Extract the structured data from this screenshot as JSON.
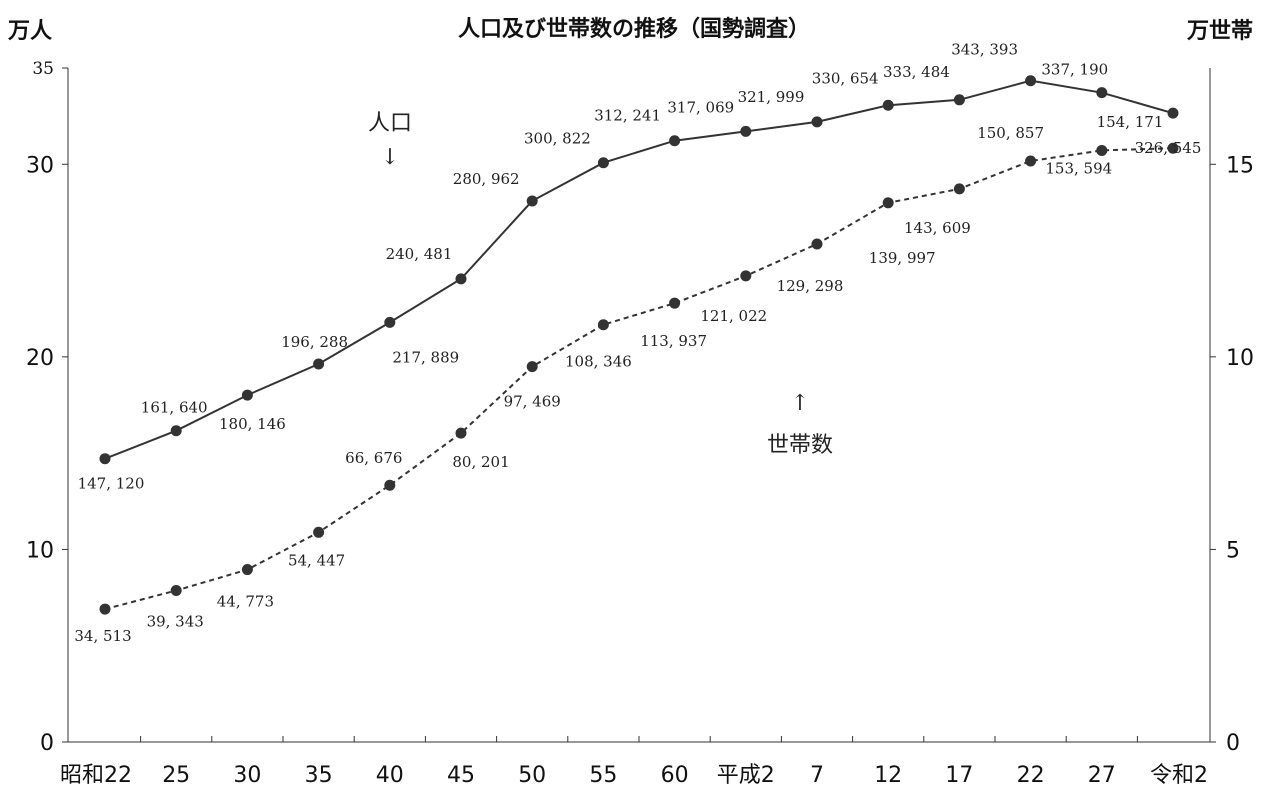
{
  "chart_data": {
    "type": "line",
    "title": "人口及び世帯数の推移（国勢調査）",
    "y_left_unit": "万人",
    "y_right_unit": "万世帯",
    "categories": [
      "昭和22",
      "25",
      "30",
      "35",
      "40",
      "45",
      "50",
      "55",
      "60",
      "平成2",
      "7",
      "12",
      "17",
      "22",
      "27",
      "令和2"
    ],
    "y_left": {
      "ticks": [
        "0",
        "10",
        "20",
        "30",
        "35"
      ],
      "range": [
        0,
        35
      ]
    },
    "y_right": {
      "ticks": [
        "0",
        "5",
        "10",
        "15"
      ],
      "range": [
        0,
        17.5
      ]
    },
    "series": [
      {
        "values": [
          147120,
          161640,
          180146,
          196288,
          217889,
          240481,
          280962,
          300822,
          312241,
          317069,
          321999,
          330654,
          333484,
          343393,
          337190,
          326545
        ],
        "labels": [
          "147, 120",
          "161, 640",
          "180, 146",
          "196, 288",
          "217, 889",
          "240, 481",
          "280, 962",
          "300, 822",
          "312, 241",
          "317, 069",
          "321, 999",
          "330, 654",
          "333, 484",
          "343, 393",
          "337, 190",
          "326, 545"
        ],
        "axis": "left",
        "style": "solid"
      },
      {
        "values": [
          34513,
          39343,
          44773,
          54447,
          66676,
          80201,
          97469,
          108346,
          113937,
          121022,
          129298,
          139997,
          143609,
          150857,
          153594,
          154171
        ],
        "labels": [
          "34, 513",
          "39, 343",
          "44, 773",
          "54, 447",
          "66, 676",
          "80, 201",
          "97, 469",
          "108, 346",
          "113, 937",
          "121, 022",
          "129, 298",
          "139, 997",
          "143, 609",
          "150, 857",
          "153, 594",
          "154, 171"
        ],
        "axis": "right",
        "style": "dashed"
      }
    ],
    "annotations": [
      {
        "text": "人口",
        "arrow": "↓"
      },
      {
        "text": "世帯数",
        "arrow": "↑"
      }
    ],
    "legend": "none",
    "grid": false
  }
}
